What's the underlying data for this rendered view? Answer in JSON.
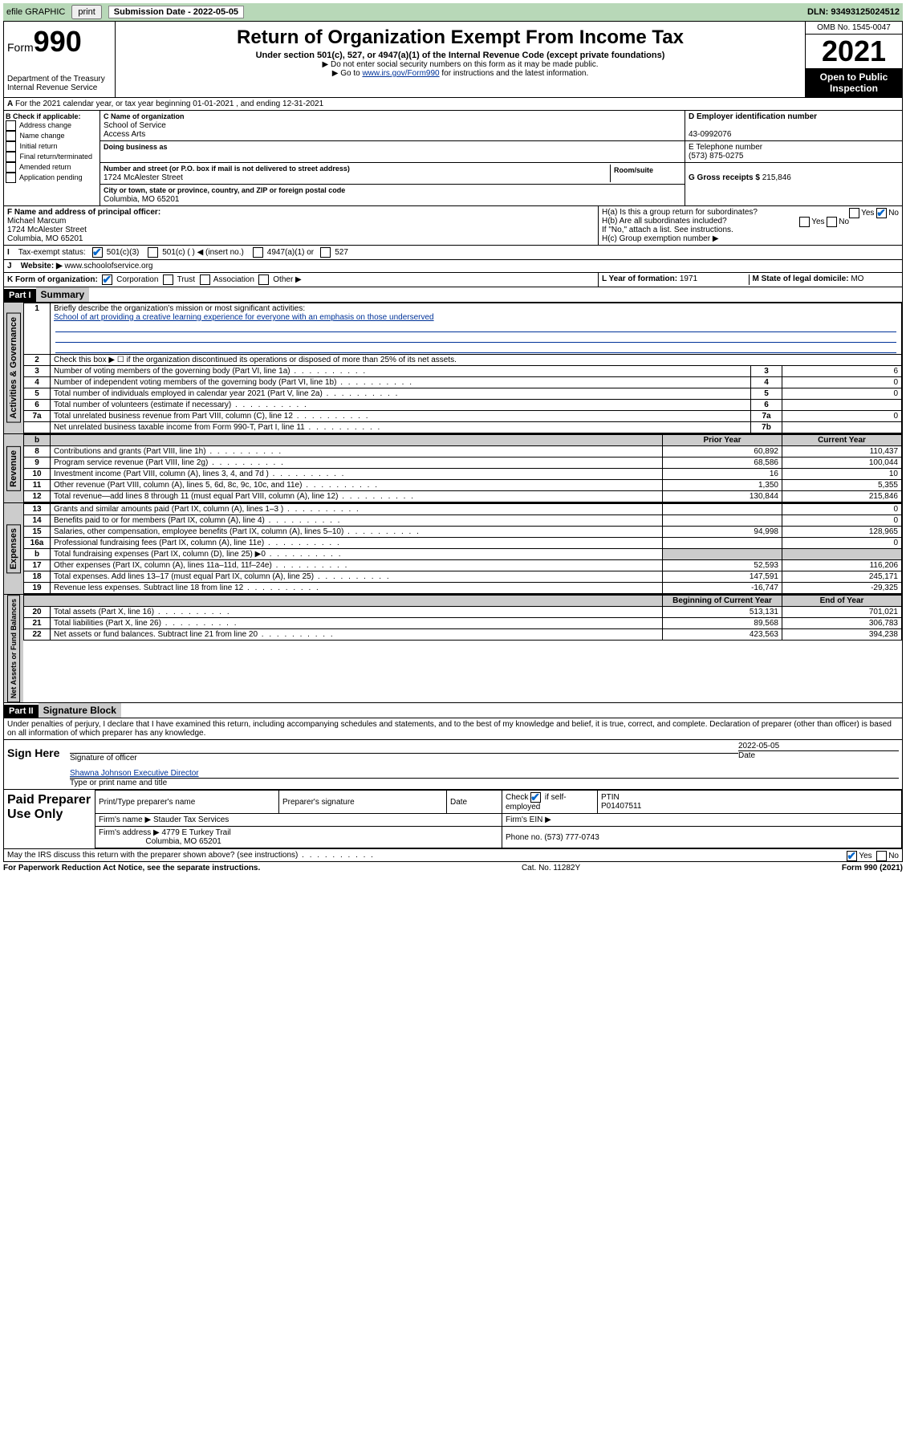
{
  "topbar": {
    "efile_label": "efile GRAPHIC",
    "print_btn": "print",
    "sub_date_label": "Submission Date - 2022-05-05",
    "dln": "DLN: 93493125024512"
  },
  "header": {
    "form_label": "Form",
    "form_num": "990",
    "dept": "Department of the Treasury",
    "irs": "Internal Revenue Service",
    "title": "Return of Organization Exempt From Income Tax",
    "sub": "Under section 501(c), 527, or 4947(a)(1) of the Internal Revenue Code (except private foundations)",
    "note1": "▶ Do not enter social security numbers on this form as it may be made public.",
    "note2_pre": "▶ Go to ",
    "note2_link": "www.irs.gov/Form990",
    "note2_post": " for instructions and the latest information.",
    "omb": "OMB No. 1545-0047",
    "year": "2021",
    "inspect1": "Open to Public",
    "inspect2": "Inspection"
  },
  "lineA": "For the 2021 calendar year, or tax year beginning 01-01-2021    , and ending 12-31-2021",
  "boxB": {
    "title": "B Check if applicable:",
    "opts": [
      "Address change",
      "Name change",
      "Initial return",
      "Final return/terminated",
      "Amended return",
      "Application pending"
    ]
  },
  "boxC": {
    "label_name": "C Name of organization",
    "name1": "School of Service",
    "name2": "Access Arts",
    "dba_label": "Doing business as",
    "addr_label": "Number and street (or P.O. box if mail is not delivered to street address)",
    "room_label": "Room/suite",
    "addr": "1724 McAlester Street",
    "city_label": "City or town, state or province, country, and ZIP or foreign postal code",
    "city": "Columbia, MO   65201"
  },
  "boxD": {
    "label": "D Employer identification number",
    "val": "43-0992076"
  },
  "boxE": {
    "label": "E Telephone number",
    "val": "(573) 875-0275"
  },
  "boxG": {
    "label": "G Gross receipts $",
    "val": "215,846"
  },
  "boxF": {
    "label": "F Name and address of principal officer:",
    "name": "Michael Marcum",
    "addr1": "1724 McAlester Street",
    "addr2": "Columbia, MO   65201"
  },
  "boxH": {
    "a": "H(a)  Is this a group return for subordinates?",
    "b": "H(b)  Are all subordinates included?",
    "note": "If \"No,\" attach a list. See instructions.",
    "c": "H(c)  Group exemption number ▶"
  },
  "rowI": {
    "label": "Tax-exempt status:",
    "opts": [
      "501(c)(3)",
      "501(c) (   ) ◀ (insert no.)",
      "4947(a)(1) or",
      "527"
    ]
  },
  "rowJ": {
    "label": "Website: ▶",
    "val": "www.schoolofservice.org"
  },
  "rowK": {
    "label": "K Form of organization:",
    "opts": [
      "Corporation",
      "Trust",
      "Association",
      "Other ▶"
    ]
  },
  "rowL": {
    "label": "L Year of formation:",
    "val": "1971"
  },
  "rowM": {
    "label": "M State of legal domicile:",
    "val": "MO"
  },
  "part1": {
    "hdr": "Part I",
    "title": "Summary",
    "q1": "Briefly describe the organization's mission or most significant activities:",
    "mission": "School of art providing a creative learning experience for everyone with an emphasis on those underserved",
    "q2": "Check this box ▶ ☐  if the organization discontinued its operations or disposed of more than 25% of its net assets.",
    "lines_gov": [
      {
        "n": "3",
        "t": "Number of voting members of the governing body (Part VI, line 1a)",
        "r": "3",
        "v": "6"
      },
      {
        "n": "4",
        "t": "Number of independent voting members of the governing body (Part VI, line 1b)",
        "r": "4",
        "v": "0"
      },
      {
        "n": "5",
        "t": "Total number of individuals employed in calendar year 2021 (Part V, line 2a)",
        "r": "5",
        "v": "0"
      },
      {
        "n": "6",
        "t": "Total number of volunteers (estimate if necessary)",
        "r": "6",
        "v": ""
      },
      {
        "n": "7a",
        "t": "Total unrelated business revenue from Part VIII, column (C), line 12",
        "r": "7a",
        "v": "0"
      },
      {
        "n": "",
        "t": "Net unrelated business taxable income from Form 990-T, Part I, line 11",
        "r": "7b",
        "v": ""
      }
    ],
    "col_hdr_prior": "Prior Year",
    "col_hdr_curr": "Current Year",
    "lines_rev": [
      {
        "n": "8",
        "t": "Contributions and grants (Part VIII, line 1h)",
        "p": "60,892",
        "c": "110,437"
      },
      {
        "n": "9",
        "t": "Program service revenue (Part VIII, line 2g)",
        "p": "68,586",
        "c": "100,044"
      },
      {
        "n": "10",
        "t": "Investment income (Part VIII, column (A), lines 3, 4, and 7d )",
        "p": "16",
        "c": "10"
      },
      {
        "n": "11",
        "t": "Other revenue (Part VIII, column (A), lines 5, 6d, 8c, 9c, 10c, and 11e)",
        "p": "1,350",
        "c": "5,355"
      },
      {
        "n": "12",
        "t": "Total revenue—add lines 8 through 11 (must equal Part VIII, column (A), line 12)",
        "p": "130,844",
        "c": "215,846"
      }
    ],
    "lines_exp": [
      {
        "n": "13",
        "t": "Grants and similar amounts paid (Part IX, column (A), lines 1–3 )",
        "p": "",
        "c": "0"
      },
      {
        "n": "14",
        "t": "Benefits paid to or for members (Part IX, column (A), line 4)",
        "p": "",
        "c": "0"
      },
      {
        "n": "15",
        "t": "Salaries, other compensation, employee benefits (Part IX, column (A), lines 5–10)",
        "p": "94,998",
        "c": "128,965"
      },
      {
        "n": "16a",
        "t": "Professional fundraising fees (Part IX, column (A), line 11e)",
        "p": "",
        "c": "0"
      },
      {
        "n": "b",
        "t": "Total fundraising expenses (Part IX, column (D), line 25) ▶0",
        "p": "SHADE",
        "c": "SHADE"
      },
      {
        "n": "17",
        "t": "Other expenses (Part IX, column (A), lines 11a–11d, 11f–24e)",
        "p": "52,593",
        "c": "116,206"
      },
      {
        "n": "18",
        "t": "Total expenses. Add lines 13–17 (must equal Part IX, column (A), line 25)",
        "p": "147,591",
        "c": "245,171"
      },
      {
        "n": "19",
        "t": "Revenue less expenses. Subtract line 18 from line 12",
        "p": "-16,747",
        "c": "-29,325"
      }
    ],
    "col_hdr_beg": "Beginning of Current Year",
    "col_hdr_end": "End of Year",
    "lines_net": [
      {
        "n": "20",
        "t": "Total assets (Part X, line 16)",
        "p": "513,131",
        "c": "701,021"
      },
      {
        "n": "21",
        "t": "Total liabilities (Part X, line 26)",
        "p": "89,568",
        "c": "306,783"
      },
      {
        "n": "22",
        "t": "Net assets or fund balances. Subtract line 21 from line 20",
        "p": "423,563",
        "c": "394,238"
      }
    ],
    "side_gov": "Activities & Governance",
    "side_rev": "Revenue",
    "side_exp": "Expenses",
    "side_net": "Net Assets or Fund Balances"
  },
  "part2": {
    "hdr": "Part II",
    "title": "Signature Block",
    "decl": "Under penalties of perjury, I declare that I have examined this return, including accompanying schedules and statements, and to the best of my knowledge and belief, it is true, correct, and complete. Declaration of preparer (other than officer) is based on all information of which preparer has any knowledge.",
    "sign_here": "Sign Here",
    "sig_officer": "Signature of officer",
    "sig_date": "Date",
    "sig_date_val": "2022-05-05",
    "officer_name": "Shawna Johnson  Executive Director",
    "type_name": "Type or print name and title",
    "paid": "Paid Preparer Use Only",
    "col_prep_name": "Print/Type preparer's name",
    "col_prep_sig": "Preparer's signature",
    "col_date": "Date",
    "col_check": "Check ☑ if self-employed",
    "col_ptin": "PTIN",
    "ptin_val": "P01407511",
    "firm_name_label": "Firm's name    ▶",
    "firm_name": "Stauder Tax Services",
    "firm_ein_label": "Firm's EIN ▶",
    "firm_addr_label": "Firm's address ▶",
    "firm_addr1": "4779 E Turkey Trail",
    "firm_addr2": "Columbia, MO   65201",
    "phone_label": "Phone no.",
    "phone": "(573) 777-0743",
    "discuss": "May the IRS discuss this return with the preparer shown above? (see instructions)"
  },
  "footer": {
    "left": "For Paperwork Reduction Act Notice, see the separate instructions.",
    "mid": "Cat. No. 11282Y",
    "right": "Form 990 (2021)"
  },
  "labels": {
    "yes": "Yes",
    "no": "No"
  }
}
